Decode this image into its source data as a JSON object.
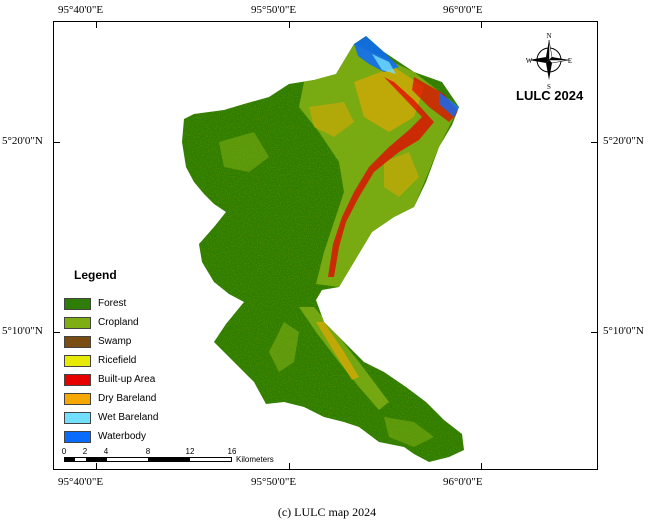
{
  "map": {
    "title": "LULC 2024",
    "caption": "(c) LULC map 2024",
    "coords": {
      "top": [
        "95°40'0\"E",
        "95°50'0\"E",
        "96°0'0\"E"
      ],
      "bottom": [
        "95°40'0\"E",
        "95°50'0\"E",
        "96°0'0\"E"
      ],
      "left": [
        "5°20'0\"N",
        "5°10'0\"N"
      ],
      "right": [
        "5°20'0\"N",
        "5°10'0\"N"
      ]
    },
    "compass": {
      "n": "N",
      "s": "S",
      "e": "E",
      "w": "W"
    },
    "legend": {
      "title": "Legend",
      "items": [
        {
          "label": "Forest",
          "color": "#2e7d06"
        },
        {
          "label": "Cropland",
          "color": "#7fae14"
        },
        {
          "label": "Swamp",
          "color": "#7a4e12"
        },
        {
          "label": "Ricefield",
          "color": "#e6ea05"
        },
        {
          "label": "Built-up Area",
          "color": "#e60000"
        },
        {
          "label": "Dry Bareland",
          "color": "#f7a800"
        },
        {
          "label": "Wet Bareland",
          "color": "#73dfff"
        },
        {
          "label": "Waterbody",
          "color": "#0a6bff"
        }
      ]
    },
    "scale": {
      "ticks": [
        "0",
        "2",
        "4",
        "8",
        "12",
        "16"
      ],
      "unit": "Kilometers"
    }
  }
}
